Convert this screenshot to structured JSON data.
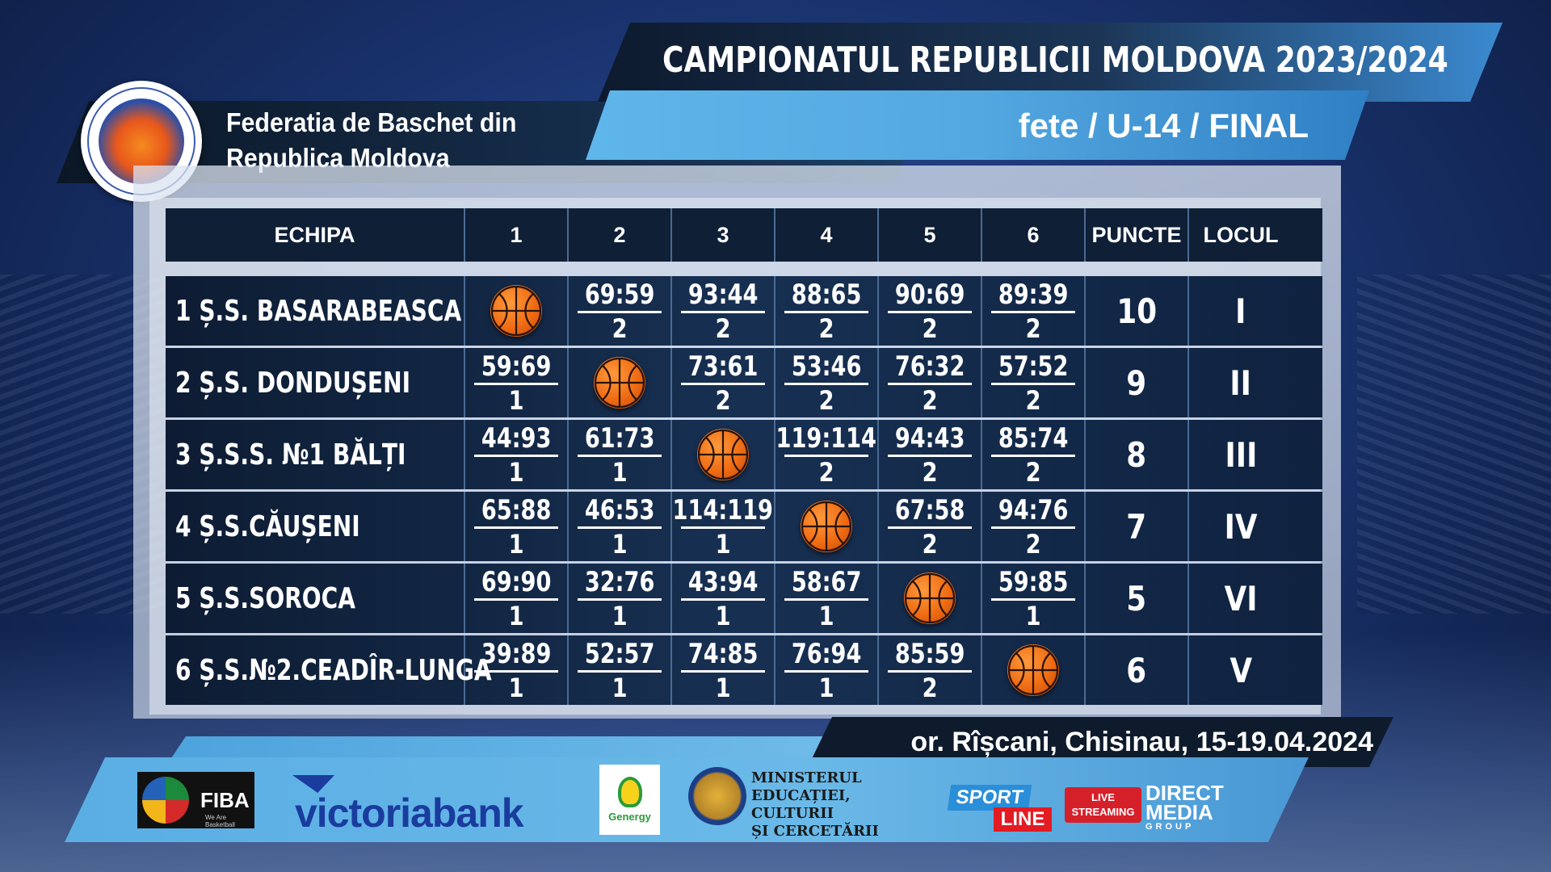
{
  "title": "CAMPIONATUL REPUBLICII MOLDOVA 2023/2024",
  "subtitle": "fete / U-14 / FINAL",
  "federation": {
    "line1": "Federatia de Baschet din",
    "line2": "Republica Moldova",
    "logo_icon": "federation-logo-icon"
  },
  "table": {
    "headers": [
      "ECHIPA",
      "1",
      "2",
      "3",
      "4",
      "5",
      "6",
      "PUNCTE",
      "LOCUL"
    ],
    "rows": [
      {
        "team": "1  Ș.S. BASARABEASCA",
        "cells": [
          null,
          {
            "s": "69:59",
            "p": "2"
          },
          {
            "s": "93:44",
            "p": "2"
          },
          {
            "s": "88:65",
            "p": "2"
          },
          {
            "s": "90:69",
            "p": "2"
          },
          {
            "s": "89:39",
            "p": "2"
          }
        ],
        "points": "10",
        "place": "I"
      },
      {
        "team": "2  Ș.S. DONDUȘENI",
        "cells": [
          {
            "s": "59:69",
            "p": "1"
          },
          null,
          {
            "s": "73:61",
            "p": "2"
          },
          {
            "s": "53:46",
            "p": "2"
          },
          {
            "s": "76:32",
            "p": "2"
          },
          {
            "s": "57:52",
            "p": "2"
          }
        ],
        "points": "9",
        "place": "II"
      },
      {
        "team": "3  Ș.S.S. №1 BĂLȚI",
        "cells": [
          {
            "s": "44:93",
            "p": "1"
          },
          {
            "s": "61:73",
            "p": "1"
          },
          null,
          {
            "s": "119:114",
            "p": "2"
          },
          {
            "s": "94:43",
            "p": "2"
          },
          {
            "s": "85:74",
            "p": "2"
          }
        ],
        "points": "8",
        "place": "III"
      },
      {
        "team": "4  Ș.S.CĂUȘENI",
        "cells": [
          {
            "s": "65:88",
            "p": "1"
          },
          {
            "s": "46:53",
            "p": "1"
          },
          {
            "s": "114:119",
            "p": "1"
          },
          null,
          {
            "s": "67:58",
            "p": "2"
          },
          {
            "s": "94:76",
            "p": "2"
          }
        ],
        "points": "7",
        "place": "IV"
      },
      {
        "team": "5  Ș.S.SOROCA",
        "cells": [
          {
            "s": "69:90",
            "p": "1"
          },
          {
            "s": "32:76",
            "p": "1"
          },
          {
            "s": "43:94",
            "p": "1"
          },
          {
            "s": "58:67",
            "p": "1"
          },
          null,
          {
            "s": "59:85",
            "p": "1"
          }
        ],
        "points": "5",
        "place": "VI"
      },
      {
        "team": "6  Ș.S.№2.CEADÎR-LUNGA",
        "cells": [
          {
            "s": "39:89",
            "p": "1"
          },
          {
            "s": "52:57",
            "p": "1"
          },
          {
            "s": "74:85",
            "p": "1"
          },
          {
            "s": "76:94",
            "p": "1"
          },
          {
            "s": "85:59",
            "p": "2"
          },
          null
        ],
        "points": "6",
        "place": "V"
      }
    ]
  },
  "location": "or. Rîșcani, Chisinau, 15-19.04.2024",
  "sponsors": {
    "fiba": "FIBA",
    "fiba_sub": "We Are Basketball",
    "victoriabank": "victoriabank",
    "genergy": "Genergy",
    "ministry": [
      "MINISTERUL",
      "EDUCAȚIEI, CULTURII",
      "ȘI CERCETĂRII"
    ],
    "sport": "SPORT",
    "line": "LINE",
    "live": [
      "LIVE",
      "STREAMING"
    ],
    "direct_media": [
      "DIRECT",
      "MEDIA",
      "GROUP"
    ]
  }
}
